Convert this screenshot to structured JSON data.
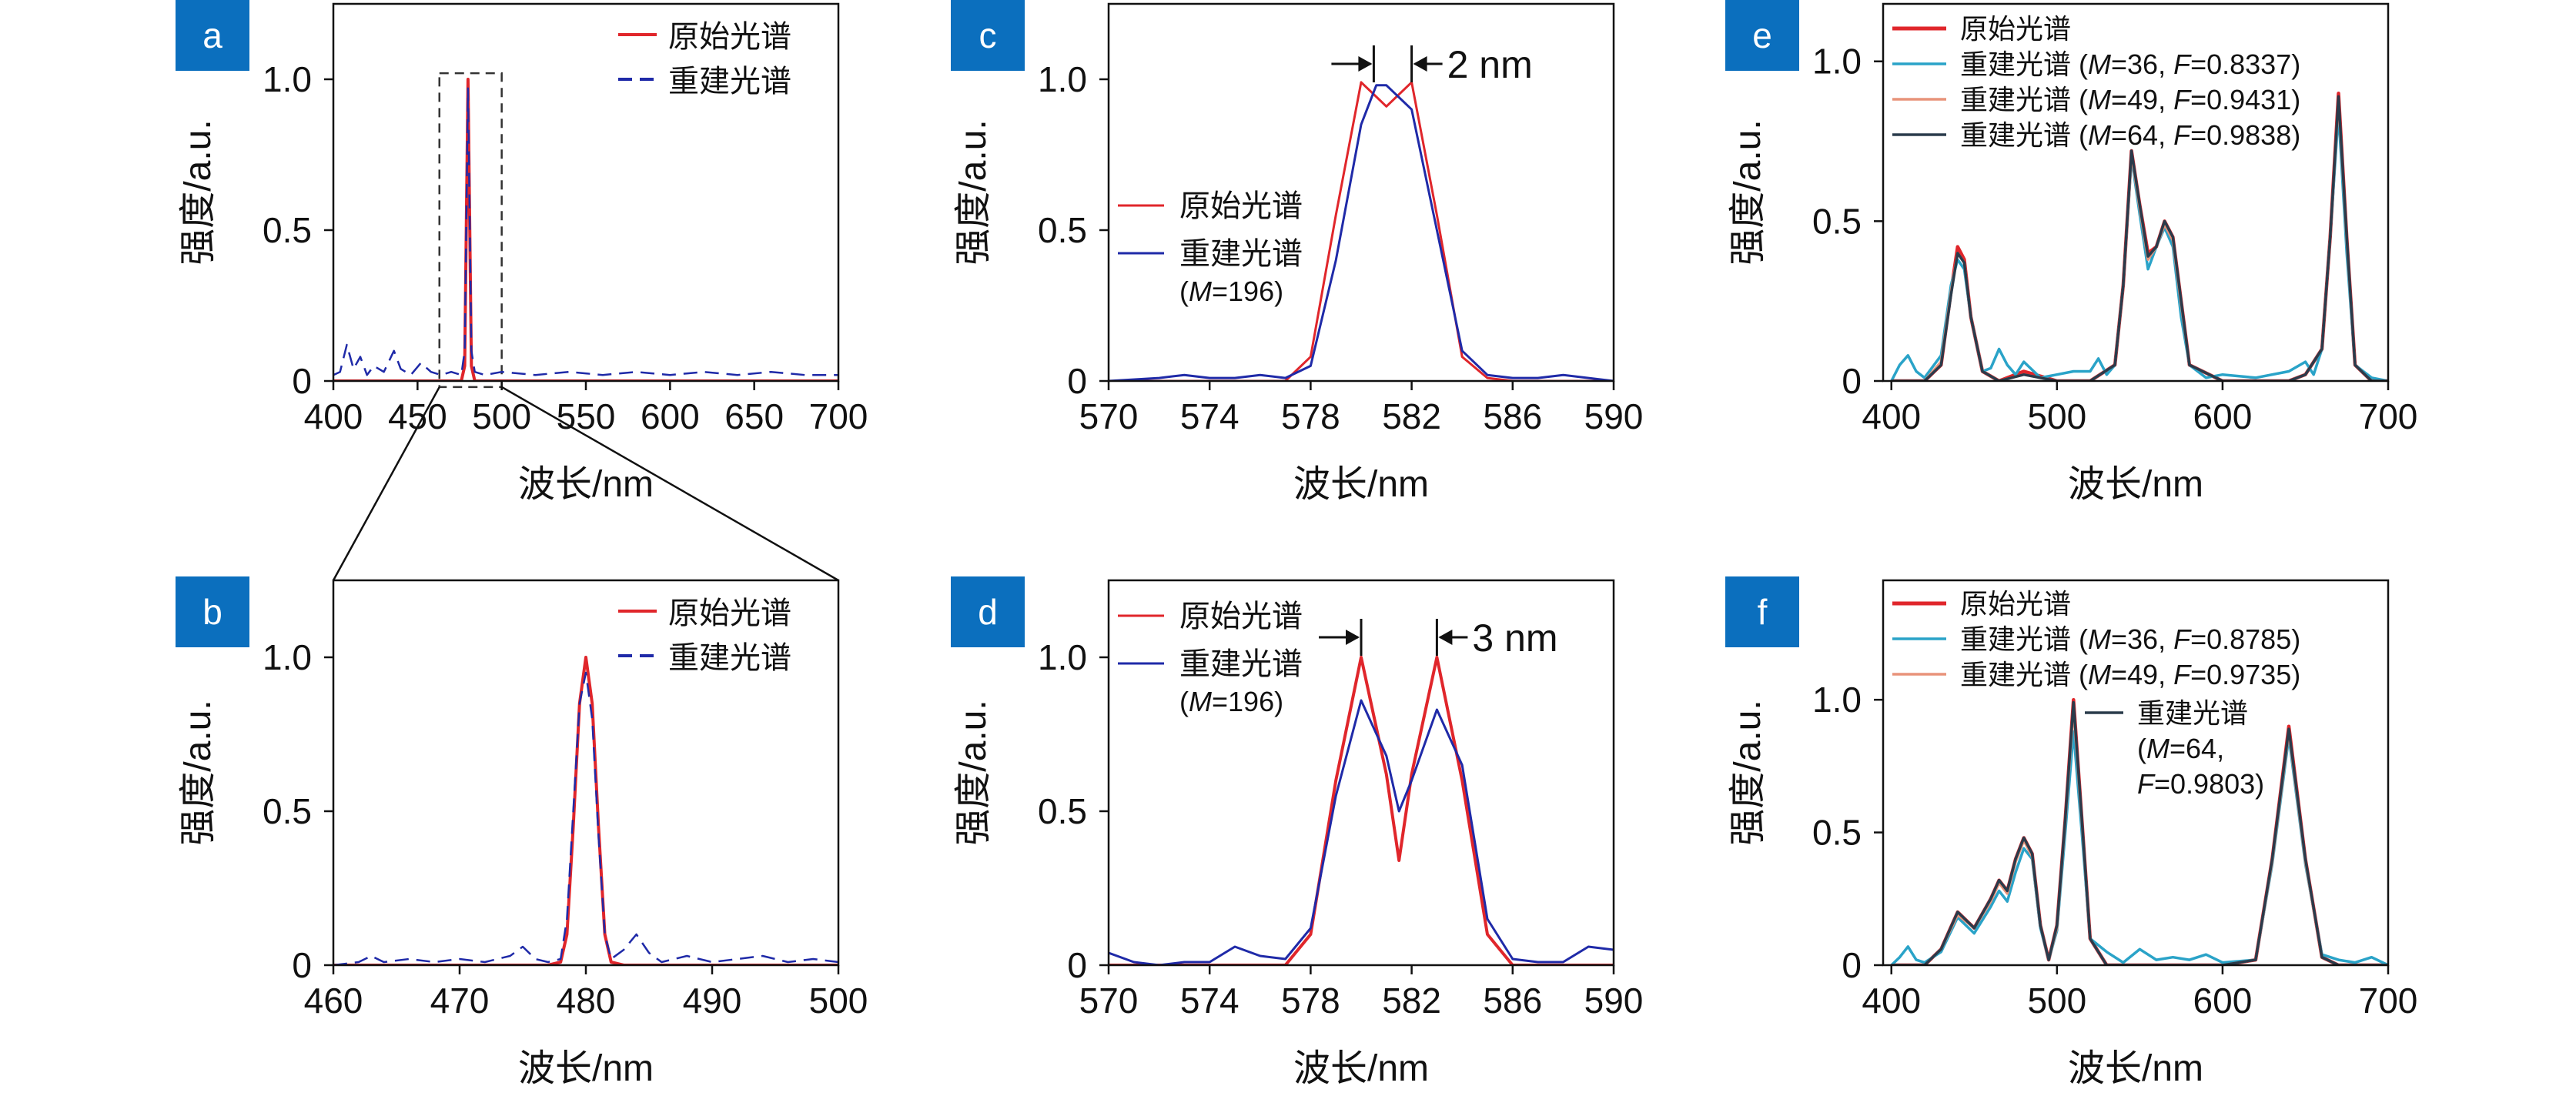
{
  "xlabel": "波长/nm",
  "ylabel": "强度/a.u.",
  "colors": {
    "original": "#e0262b",
    "reconstructed": "#1f2aa8",
    "M36": "#2aa3c8",
    "M49": "#e8937a",
    "M64": "#2a3b4b",
    "badge": "#0b6fbe"
  },
  "chart_data": [
    {
      "id": "a",
      "label": "a",
      "type": "line",
      "xlim": [
        400,
        700
      ],
      "ylim": [
        0,
        1.25
      ],
      "xticks": [
        "400",
        "450",
        "500",
        "550",
        "600",
        "650",
        "700"
      ],
      "yticks": [
        "0",
        "0.5",
        "1.0"
      ],
      "legend": [
        "原始光谱",
        "重建光谱"
      ],
      "series": [
        {
          "name": "原始光谱",
          "x": [
            400,
            470,
            476,
            478,
            480,
            482,
            484,
            490,
            700
          ],
          "y": [
            0,
            0,
            0,
            0.05,
            1.0,
            0.05,
            0,
            0,
            0
          ]
        },
        {
          "name": "重建光谱",
          "x": [
            400,
            404,
            408,
            412,
            416,
            420,
            424,
            430,
            436,
            440,
            446,
            452,
            458,
            464,
            470,
            476,
            478,
            480,
            482,
            484,
            490,
            500,
            520,
            540,
            560,
            580,
            600,
            620,
            640,
            660,
            680,
            700
          ],
          "y": [
            0.02,
            0.03,
            0.12,
            0.04,
            0.08,
            0.02,
            0.05,
            0.03,
            0.1,
            0.04,
            0.02,
            0.06,
            0.03,
            0.02,
            0.03,
            0.02,
            0.1,
            0.97,
            0.1,
            0.03,
            0.02,
            0.03,
            0.02,
            0.03,
            0.02,
            0.03,
            0.02,
            0.03,
            0.02,
            0.03,
            0.02,
            0.02
          ]
        }
      ]
    },
    {
      "id": "b",
      "label": "b",
      "type": "line",
      "xlim": [
        460,
        500
      ],
      "ylim": [
        0,
        1.25
      ],
      "xticks": [
        "460",
        "470",
        "480",
        "490",
        "500"
      ],
      "yticks": [
        "0",
        "0.5",
        "1.0"
      ],
      "legend": [
        "原始光谱",
        "重建光谱"
      ],
      "series": [
        {
          "name": "原始光谱",
          "x": [
            460,
            477,
            478,
            478.5,
            479,
            479.5,
            480,
            480.5,
            481,
            481.5,
            482,
            483,
            500
          ],
          "y": [
            0,
            0,
            0.01,
            0.1,
            0.45,
            0.85,
            1.0,
            0.85,
            0.45,
            0.1,
            0.01,
            0,
            0
          ]
        },
        {
          "name": "重建光谱",
          "x": [
            460,
            462,
            463,
            464,
            466,
            468,
            470,
            472,
            474,
            475,
            476,
            477,
            478,
            478.5,
            479,
            479.5,
            480,
            480.5,
            481,
            481.5,
            482,
            483,
            484,
            485,
            486,
            488,
            490,
            492,
            494,
            496,
            498,
            500
          ],
          "y": [
            0,
            0.01,
            0.03,
            0.01,
            0.02,
            0.01,
            0.02,
            0.01,
            0.03,
            0.06,
            0.02,
            0.01,
            0.02,
            0.15,
            0.5,
            0.85,
            0.95,
            0.8,
            0.42,
            0.1,
            0.02,
            0.05,
            0.1,
            0.04,
            0.01,
            0.03,
            0.01,
            0.02,
            0.03,
            0.01,
            0.02,
            0.01
          ]
        }
      ]
    },
    {
      "id": "c",
      "label": "c",
      "type": "line",
      "xlim": [
        570,
        590
      ],
      "ylim": [
        0,
        1.25
      ],
      "xticks": [
        "570",
        "574",
        "578",
        "582",
        "586",
        "590"
      ],
      "yticks": [
        "0",
        "0.5",
        "1.0"
      ],
      "legend": [
        "原始光谱",
        "重建光谱",
        "(M=196)"
      ],
      "annotation": "2 nm",
      "series": [
        {
          "name": "原始光谱",
          "x": [
            570,
            577,
            578,
            579,
            580,
            581,
            582,
            583,
            584,
            585,
            586,
            590
          ],
          "y": [
            0,
            0,
            0.08,
            0.55,
            0.99,
            0.91,
            0.99,
            0.55,
            0.08,
            0.01,
            0,
            0
          ]
        },
        {
          "name": "重建光谱",
          "x": [
            570,
            572,
            573,
            574,
            575,
            576,
            577,
            578,
            579,
            580,
            580.6,
            581,
            582,
            583,
            584,
            585,
            586,
            587,
            588,
            589,
            590
          ],
          "y": [
            0,
            0.01,
            0.02,
            0.01,
            0.01,
            0.02,
            0.01,
            0.05,
            0.4,
            0.85,
            0.98,
            0.98,
            0.9,
            0.5,
            0.1,
            0.02,
            0.01,
            0.01,
            0.02,
            0.01,
            0
          ]
        }
      ]
    },
    {
      "id": "d",
      "label": "d",
      "type": "line",
      "xlim": [
        570,
        590
      ],
      "ylim": [
        0,
        1.25
      ],
      "xticks": [
        "570",
        "574",
        "578",
        "582",
        "586",
        "590"
      ],
      "yticks": [
        "0",
        "0.5",
        "1.0"
      ],
      "legend": [
        "原始光谱",
        "重建光谱",
        "(M=196)"
      ],
      "annotation": "3 nm",
      "series": [
        {
          "name": "原始光谱",
          "x": [
            570,
            577,
            578,
            579,
            580,
            581,
            581.5,
            582,
            583,
            584,
            585,
            586,
            590
          ],
          "y": [
            0,
            0,
            0.1,
            0.6,
            1.0,
            0.62,
            0.34,
            0.62,
            1.0,
            0.6,
            0.1,
            0,
            0
          ]
        },
        {
          "name": "重建光谱",
          "x": [
            570,
            571,
            572,
            573,
            574,
            575,
            576,
            577,
            578,
            579,
            580,
            581,
            581.5,
            582,
            583,
            584,
            585,
            586,
            587,
            588,
            589,
            590
          ],
          "y": [
            0.04,
            0.01,
            0.0,
            0.01,
            0.01,
            0.06,
            0.03,
            0.02,
            0.12,
            0.55,
            0.86,
            0.68,
            0.5,
            0.6,
            0.83,
            0.65,
            0.15,
            0.02,
            0.01,
            0.01,
            0.06,
            0.05
          ]
        }
      ]
    },
    {
      "id": "e",
      "label": "e",
      "type": "line",
      "xlim": [
        395,
        700
      ],
      "ylim": [
        0,
        1.18
      ],
      "xticks": [
        "400",
        "500",
        "600",
        "700"
      ],
      "yticks": [
        "0",
        "0.5",
        "1.0"
      ],
      "legend": [
        "原始光谱",
        "重建光谱 (M=36, F=0.8337)",
        "重建光谱 (M=49, F=0.9431)",
        "重建光谱 (M=64, F=0.9838)"
      ],
      "series": [
        {
          "name": "原始光谱",
          "x": [
            400,
            420,
            430,
            436,
            440,
            444,
            448,
            455,
            465,
            480,
            500,
            520,
            535,
            540,
            545,
            550,
            555,
            560,
            565,
            570,
            575,
            580,
            600,
            640,
            650,
            660,
            665,
            670,
            675,
            680,
            690,
            700
          ],
          "y": [
            0,
            0,
            0.05,
            0.28,
            0.42,
            0.38,
            0.2,
            0.03,
            0,
            0.03,
            0,
            0,
            0.05,
            0.3,
            0.72,
            0.55,
            0.4,
            0.42,
            0.5,
            0.45,
            0.25,
            0.05,
            0,
            0,
            0.02,
            0.1,
            0.45,
            0.9,
            0.45,
            0.05,
            0,
            0
          ]
        },
        {
          "name": "重建光谱 (M=36, F=0.8337)",
          "x": [
            400,
            405,
            410,
            415,
            420,
            430,
            436,
            440,
            444,
            448,
            455,
            460,
            465,
            470,
            475,
            480,
            490,
            500,
            510,
            520,
            525,
            530,
            535,
            540,
            545,
            550,
            555,
            560,
            565,
            570,
            575,
            580,
            590,
            600,
            620,
            640,
            650,
            655,
            660,
            665,
            670,
            675,
            680,
            690,
            700
          ],
          "y": [
            0,
            0.05,
            0.08,
            0.03,
            0.01,
            0.08,
            0.3,
            0.38,
            0.35,
            0.2,
            0.03,
            0.04,
            0.1,
            0.05,
            0.02,
            0.06,
            0.01,
            0.02,
            0.03,
            0.03,
            0.07,
            0.02,
            0.05,
            0.3,
            0.7,
            0.52,
            0.35,
            0.42,
            0.48,
            0.42,
            0.2,
            0.05,
            0.01,
            0.02,
            0.01,
            0.03,
            0.06,
            0.02,
            0.1,
            0.45,
            0.84,
            0.4,
            0.05,
            0.01,
            0
          ]
        },
        {
          "name": "重建光谱 (M=49, F=0.9431)",
          "x": [
            400,
            420,
            430,
            436,
            440,
            444,
            448,
            455,
            465,
            480,
            500,
            520,
            535,
            540,
            545,
            550,
            555,
            560,
            565,
            570,
            575,
            580,
            600,
            640,
            650,
            660,
            665,
            670,
            675,
            680,
            690,
            700
          ],
          "y": [
            0,
            0,
            0.06,
            0.28,
            0.4,
            0.37,
            0.2,
            0.03,
            0,
            0.02,
            0,
            0,
            0.05,
            0.3,
            0.71,
            0.54,
            0.38,
            0.42,
            0.49,
            0.44,
            0.24,
            0.05,
            0,
            0,
            0.02,
            0.1,
            0.45,
            0.88,
            0.44,
            0.05,
            0,
            0
          ]
        },
        {
          "name": "重建光谱 (M=64, F=0.9838)",
          "x": [
            400,
            420,
            430,
            436,
            440,
            444,
            448,
            455,
            465,
            480,
            500,
            520,
            535,
            540,
            545,
            550,
            555,
            560,
            565,
            570,
            575,
            580,
            600,
            640,
            650,
            660,
            665,
            670,
            675,
            680,
            690,
            700
          ],
          "y": [
            0,
            0,
            0.05,
            0.27,
            0.4,
            0.37,
            0.2,
            0.03,
            0,
            0.02,
            0,
            0,
            0.05,
            0.3,
            0.72,
            0.55,
            0.39,
            0.42,
            0.5,
            0.45,
            0.25,
            0.05,
            0,
            0,
            0.02,
            0.1,
            0.45,
            0.89,
            0.45,
            0.05,
            0,
            0
          ]
        }
      ]
    },
    {
      "id": "f",
      "label": "f",
      "type": "line",
      "xlim": [
        395,
        700
      ],
      "ylim": [
        0,
        1.45
      ],
      "xticks": [
        "400",
        "500",
        "600",
        "700"
      ],
      "yticks": [
        "0",
        "0.5",
        "1.0"
      ],
      "legend": [
        "原始光谱",
        "重建光谱 (M=36, F=0.8785)",
        "重建光谱 (M=49, F=0.9735)",
        "重建光谱",
        "(M=64,",
        "F=0.9803)"
      ],
      "series": [
        {
          "name": "原始光谱",
          "x": [
            400,
            420,
            430,
            440,
            450,
            460,
            465,
            470,
            475,
            480,
            485,
            490,
            495,
            500,
            505,
            510,
            515,
            520,
            530,
            600,
            620,
            630,
            640,
            650,
            660,
            670,
            700
          ],
          "y": [
            0,
            0,
            0.06,
            0.2,
            0.14,
            0.25,
            0.32,
            0.28,
            0.4,
            0.48,
            0.42,
            0.15,
            0.02,
            0.15,
            0.55,
            1.0,
            0.55,
            0.1,
            0,
            0,
            0.02,
            0.4,
            0.9,
            0.4,
            0.03,
            0,
            0
          ]
        },
        {
          "name": "重建光谱 (M=36, F=0.8785)",
          "x": [
            400,
            405,
            410,
            415,
            420,
            430,
            440,
            450,
            460,
            465,
            470,
            475,
            480,
            485,
            490,
            495,
            500,
            505,
            510,
            515,
            520,
            530,
            540,
            550,
            560,
            570,
            580,
            590,
            600,
            620,
            630,
            640,
            650,
            660,
            670,
            680,
            690,
            700
          ],
          "y": [
            0,
            0.03,
            0.07,
            0.02,
            0.01,
            0.05,
            0.18,
            0.12,
            0.22,
            0.28,
            0.24,
            0.35,
            0.44,
            0.4,
            0.14,
            0.02,
            0.13,
            0.5,
            0.88,
            0.5,
            0.1,
            0.05,
            0.01,
            0.06,
            0.02,
            0.03,
            0.02,
            0.04,
            0.01,
            0.02,
            0.38,
            0.86,
            0.38,
            0.04,
            0.02,
            0.01,
            0.03,
            0
          ]
        },
        {
          "name": "重建光谱 (M=49, F=0.9735)",
          "x": [
            400,
            420,
            430,
            440,
            450,
            460,
            465,
            470,
            475,
            480,
            485,
            490,
            495,
            500,
            505,
            510,
            515,
            520,
            530,
            600,
            620,
            630,
            640,
            650,
            660,
            670,
            700
          ],
          "y": [
            0,
            0,
            0.06,
            0.19,
            0.14,
            0.24,
            0.31,
            0.27,
            0.39,
            0.47,
            0.41,
            0.15,
            0.02,
            0.14,
            0.54,
            0.97,
            0.54,
            0.1,
            0,
            0,
            0.02,
            0.39,
            0.88,
            0.39,
            0.03,
            0,
            0
          ]
        },
        {
          "name": "重建光谱 (M=64, F=0.9803)",
          "x": [
            400,
            420,
            430,
            440,
            450,
            460,
            465,
            470,
            475,
            480,
            485,
            490,
            495,
            500,
            505,
            510,
            515,
            520,
            530,
            600,
            620,
            630,
            640,
            650,
            660,
            670,
            700
          ],
          "y": [
            0,
            0,
            0.06,
            0.2,
            0.14,
            0.25,
            0.32,
            0.28,
            0.4,
            0.48,
            0.42,
            0.15,
            0.02,
            0.15,
            0.55,
            0.99,
            0.55,
            0.1,
            0,
            0,
            0.02,
            0.4,
            0.89,
            0.4,
            0.03,
            0,
            0
          ]
        }
      ]
    }
  ]
}
